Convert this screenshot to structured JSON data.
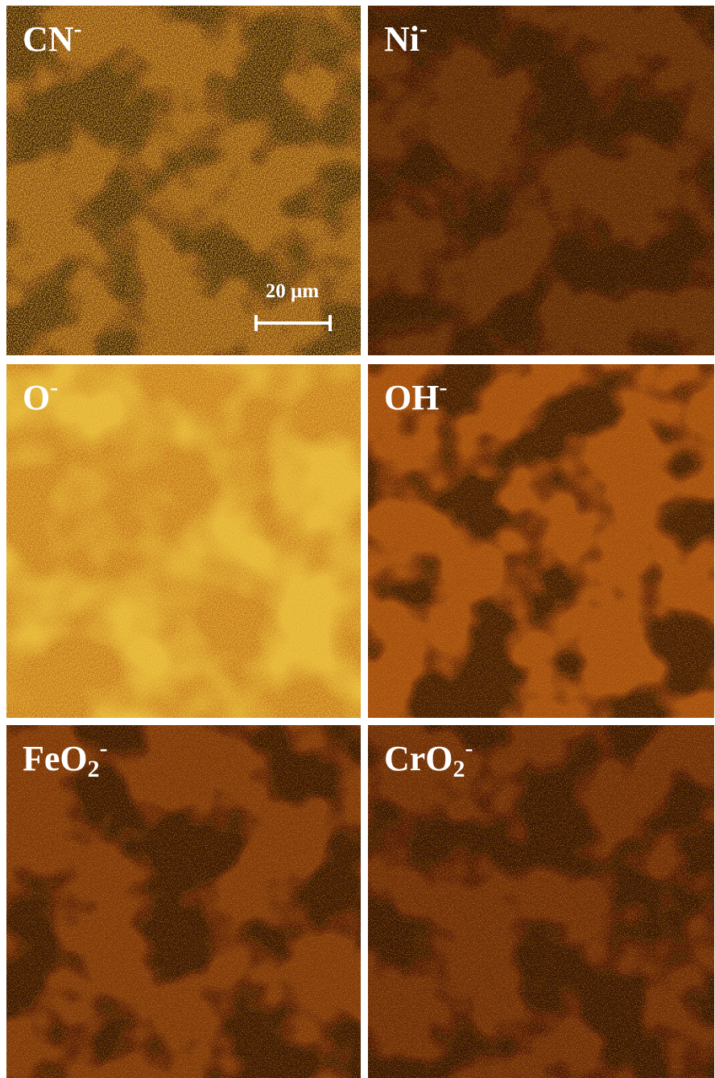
{
  "panels": [
    {
      "label": {
        "base": "CN",
        "sup": "-"
      }
    },
    {
      "label": {
        "base": "Ni",
        "sup": "-"
      }
    },
    {
      "label": {
        "base": "O",
        "sup": "-"
      }
    },
    {
      "label": {
        "base": "OH",
        "sup": "-"
      }
    },
    {
      "label": {
        "base": "FeO",
        "sub": "2",
        "sup": "-"
      }
    },
    {
      "label": {
        "base": "CrO",
        "sub": "2",
        "sup": "-"
      }
    }
  ],
  "scale_bar": {
    "label": "20 µm"
  }
}
